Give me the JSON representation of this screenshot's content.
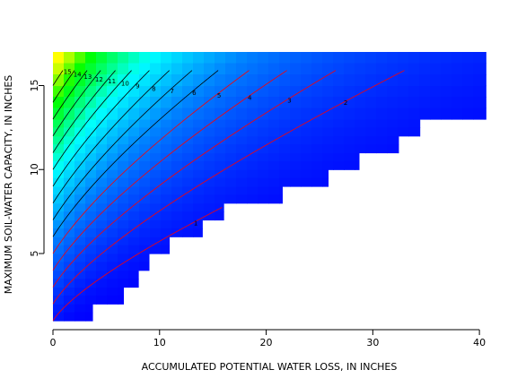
{
  "chart_data": {
    "type": "heatmap",
    "title": "",
    "xlabel": "ACCUMULATED POTENTIAL WATER LOSS, IN INCHES",
    "ylabel": "MAXIMUM SOIL-WATER CAPACITY, IN INCHES",
    "xlim": [
      0,
      41
    ],
    "ylim": [
      1,
      17
    ],
    "x_ticks": [
      0,
      10,
      20,
      30,
      40
    ],
    "y_ticks": [
      5,
      10,
      15
    ],
    "grid": false,
    "legend": "none",
    "colormap": {
      "stops": [
        {
          "value": 0,
          "color": "#0000ff"
        },
        {
          "value": 0.35,
          "color": "#0080ff"
        },
        {
          "value": 0.6,
          "color": "#00ffff"
        },
        {
          "value": 0.85,
          "color": "#00ff00"
        },
        {
          "value": 1.0,
          "color": "#ffff00"
        }
      ]
    },
    "surface": {
      "quantity_range": [
        0,
        16
      ],
      "formula": "soil_water = capacity * exp(-loss / capacity)"
    },
    "boundary": [
      {
        "y_range": [
          1,
          2
        ],
        "x_max": 3.7
      },
      {
        "y_range": [
          2,
          3
        ],
        "x_max": 6.6
      },
      {
        "y_range": [
          3,
          4
        ],
        "x_max": 8.0
      },
      {
        "y_range": [
          4,
          5
        ],
        "x_max": 9.0
      },
      {
        "y_range": [
          5,
          6
        ],
        "x_max": 10.9
      },
      {
        "y_range": [
          6,
          7
        ],
        "x_max": 14.0
      },
      {
        "y_range": [
          7,
          8
        ],
        "x_max": 16.0
      },
      {
        "y_range": [
          8,
          9
        ],
        "x_max": 21.5
      },
      {
        "y_range": [
          9,
          10
        ],
        "x_max": 25.8
      },
      {
        "y_range": [
          10,
          11
        ],
        "x_max": 28.7
      },
      {
        "y_range": [
          11,
          12
        ],
        "x_max": 32.4
      },
      {
        "y_range": [
          12,
          13
        ],
        "x_max": 34.4
      },
      {
        "y_range": [
          13,
          15
        ],
        "x_max": 40.6
      },
      {
        "y_range": [
          15,
          17
        ],
        "x_max": 40.6
      }
    ],
    "contours": [
      {
        "level": 1,
        "color": "#ff0000",
        "label": "1"
      },
      {
        "level": 2,
        "color": "#ff0000",
        "label": "2"
      },
      {
        "level": 3,
        "color": "#ff0000",
        "label": "3"
      },
      {
        "level": 4,
        "color": "#ff0000",
        "label": "4"
      },
      {
        "level": 5,
        "color": "#ff0000",
        "label": "5"
      },
      {
        "level": 6,
        "color": "#000000",
        "label": "6"
      },
      {
        "level": 7,
        "color": "#000000",
        "label": "7"
      },
      {
        "level": 8,
        "color": "#000000",
        "label": "8"
      },
      {
        "level": 9,
        "color": "#000000",
        "label": "9"
      },
      {
        "level": 10,
        "color": "#000000",
        "label": "10"
      },
      {
        "level": 11,
        "color": "#000000",
        "label": "11"
      },
      {
        "level": 12,
        "color": "#000000",
        "label": "12"
      },
      {
        "level": 13,
        "color": "#000000",
        "label": "13"
      },
      {
        "level": 14,
        "color": "#000000",
        "label": "14"
      },
      {
        "level": 15,
        "color": "#000000",
        "label": "15"
      }
    ]
  }
}
